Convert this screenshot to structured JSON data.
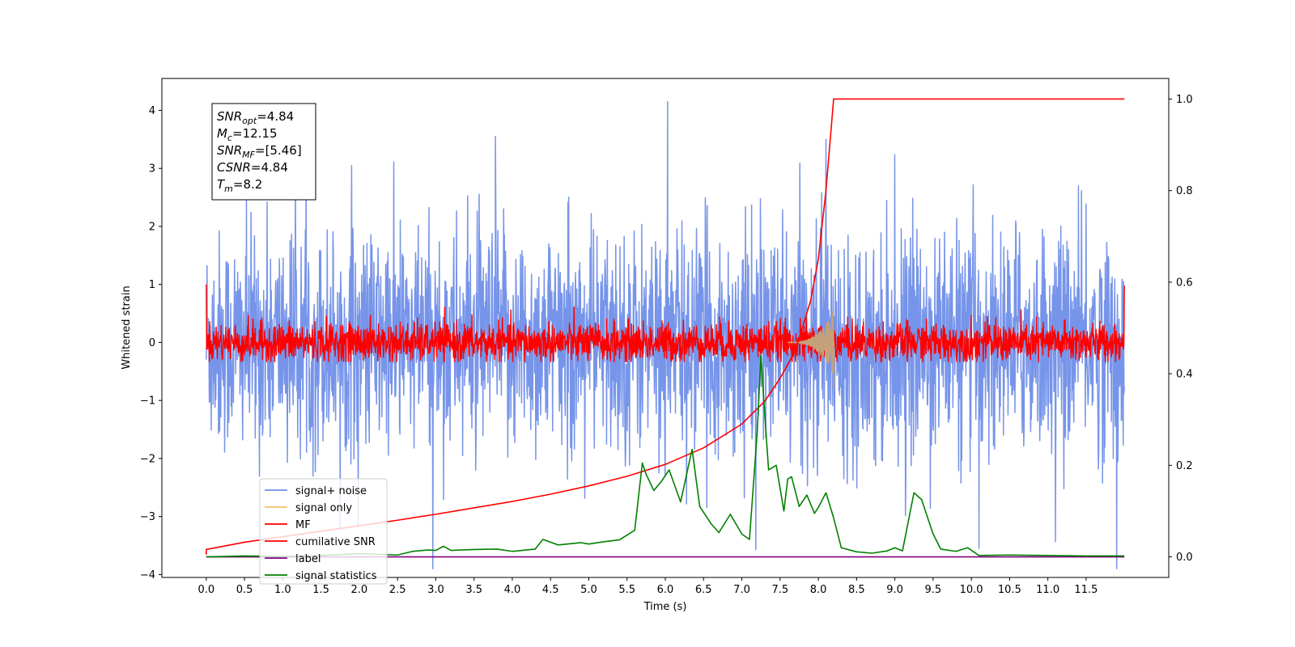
{
  "chart_data": {
    "type": "line",
    "xlabel": "Time (s)",
    "ylabel": "Whitened strain",
    "xlim": [
      -0.58,
      12.58
    ],
    "ylim": [
      -4.05,
      4.55
    ],
    "y2lim": [
      -0.045,
      1.045
    ],
    "x_ticks": [
      "0.0",
      "0.5",
      "1.0",
      "1.5",
      "2.0",
      "2.5",
      "3.0",
      "3.5",
      "4.0",
      "4.5",
      "5.0",
      "5.5",
      "6.0",
      "6.5",
      "7.0",
      "7.5",
      "8.0",
      "8.5",
      "9.0",
      "9.5",
      "10.0",
      "10.5",
      "11.0",
      "11.5"
    ],
    "y_ticks": [
      -4,
      -3,
      -2,
      -1,
      0,
      1,
      2,
      3,
      4
    ],
    "y2_ticks": [
      "0.0",
      "0.2",
      "0.4",
      "0.6",
      "0.8",
      "1.0"
    ],
    "grid": false,
    "legend_position": "lower-left",
    "annotation": {
      "lines": [
        {
          "base": "SNR",
          "sub": "opt",
          "value": "=4.84"
        },
        {
          "base": "M",
          "sub": "c",
          "value": "=12.15"
        },
        {
          "base": "SNR",
          "sub": "MF",
          "value": "=[5.46]"
        },
        {
          "base": "CSNR",
          "sub": "",
          "value": "=4.84"
        },
        {
          "base": "T",
          "sub": "m",
          "value": "=8.2"
        }
      ]
    },
    "series": [
      {
        "name": "signal+ noise",
        "color": "#6f8ee8",
        "axis": "left",
        "kind": "noise",
        "x_range": [
          0,
          12.0
        ],
        "amplitude_std": 0.95,
        "peak_values": {
          "max": 4.15,
          "min": -3.9
        }
      },
      {
        "name": "signal only",
        "color": "#f5c26b",
        "axis": "left",
        "kind": "chirp",
        "x_range": [
          7.6,
          8.2
        ],
        "peak": 0.58
      },
      {
        "name": "MF",
        "color": "#ff0000",
        "axis": "left",
        "kind": "noise",
        "x_range": [
          0,
          12.0
        ],
        "amplitude_std": 0.17
      },
      {
        "name": "cumilative SNR",
        "color": "#ff0000",
        "axis": "right",
        "x": [
          0.0,
          0.5,
          1.0,
          1.5,
          2.0,
          2.5,
          3.0,
          3.5,
          4.0,
          4.5,
          5.0,
          5.5,
          6.0,
          6.5,
          7.0,
          7.3,
          7.5,
          7.7,
          7.9,
          8.0,
          8.1,
          8.15,
          8.2,
          12.0
        ],
        "y": [
          0.016,
          0.032,
          0.044,
          0.056,
          0.068,
          0.08,
          0.093,
          0.107,
          0.121,
          0.137,
          0.155,
          0.176,
          0.202,
          0.238,
          0.29,
          0.34,
          0.39,
          0.45,
          0.56,
          0.65,
          0.8,
          0.9,
          1.0,
          1.0
        ]
      },
      {
        "name": "label",
        "color": "#800080",
        "axis": "right",
        "x": [
          0.0,
          12.0
        ],
        "y": [
          0.0,
          0.0
        ]
      },
      {
        "name": "signal statistics",
        "color": "#008000",
        "axis": "right",
        "x": [
          0.0,
          0.5,
          1.0,
          1.5,
          2.0,
          2.5,
          2.7,
          2.9,
          3.0,
          3.1,
          3.2,
          3.5,
          3.8,
          4.0,
          4.3,
          4.4,
          4.6,
          4.9,
          5.0,
          5.2,
          5.4,
          5.6,
          5.7,
          5.75,
          5.85,
          5.95,
          6.05,
          6.2,
          6.35,
          6.45,
          6.6,
          6.7,
          6.85,
          7.0,
          7.1,
          7.2,
          7.25,
          7.3,
          7.35,
          7.45,
          7.55,
          7.6,
          7.65,
          7.75,
          7.85,
          7.95,
          8.0,
          8.1,
          8.2,
          8.3,
          8.5,
          8.7,
          8.9,
          9.0,
          9.1,
          9.25,
          9.35,
          9.5,
          9.6,
          9.8,
          9.95,
          10.1,
          10.5,
          11.0,
          11.5,
          12.0
        ],
        "y": [
          0.0,
          0.002,
          0.001,
          0.003,
          0.007,
          0.004,
          0.012,
          0.015,
          0.014,
          0.023,
          0.014,
          0.016,
          0.017,
          0.012,
          0.017,
          0.038,
          0.026,
          0.031,
          0.028,
          0.033,
          0.037,
          0.058,
          0.205,
          0.18,
          0.145,
          0.165,
          0.19,
          0.12,
          0.235,
          0.11,
          0.072,
          0.053,
          0.093,
          0.05,
          0.038,
          0.27,
          0.44,
          0.31,
          0.19,
          0.2,
          0.1,
          0.17,
          0.175,
          0.11,
          0.135,
          0.095,
          0.108,
          0.14,
          0.085,
          0.02,
          0.011,
          0.008,
          0.013,
          0.02,
          0.013,
          0.14,
          0.125,
          0.05,
          0.017,
          0.012,
          0.02,
          0.003,
          0.004,
          0.003,
          0.002,
          0.002
        ]
      }
    ]
  }
}
